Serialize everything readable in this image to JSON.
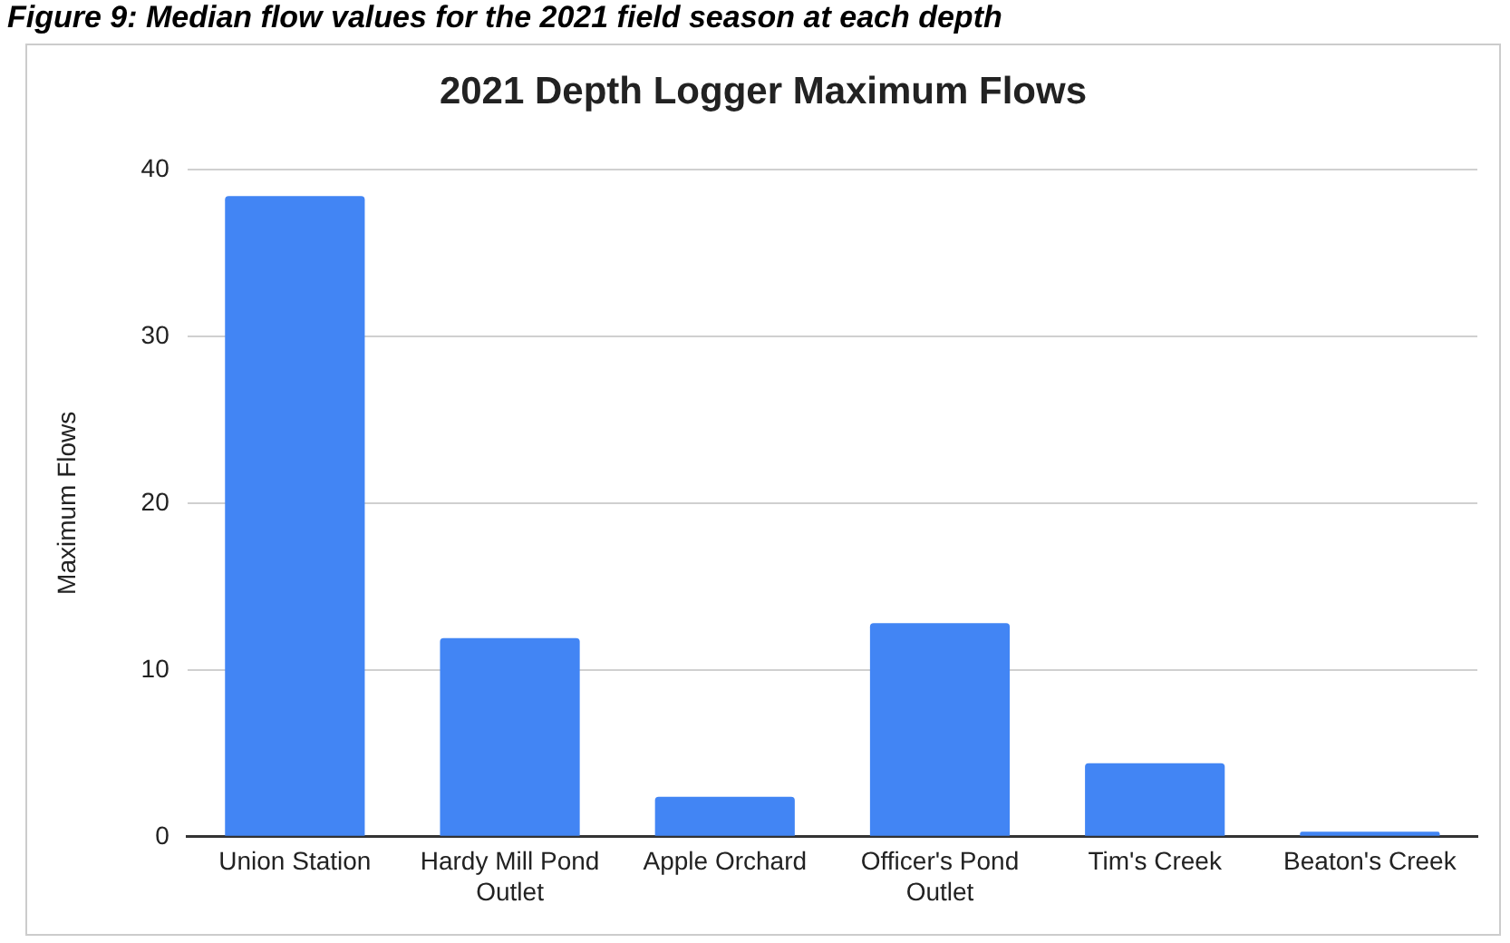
{
  "chart_data": {
    "type": "bar",
    "title": "2021 Depth Logger Maximum Flows",
    "ylabel": "Maximum Flows",
    "annotations": [
      "Figure 9: Median flow values for the 2021 field season at each depth"
    ],
    "categories": [
      "Union Station",
      "Hardy Mill Pond Outlet",
      "Apple Orchard",
      "Officer's Pond Outlet",
      "Tim's Creek",
      "Beaton's Creek"
    ],
    "values": [
      38.4,
      11.9,
      2.4,
      12.8,
      4.4,
      0.3
    ],
    "color": "#4285f4",
    "ylim": [
      0,
      40
    ],
    "yticks": [
      0,
      10,
      20,
      30,
      40
    ],
    "grid": "y"
  }
}
